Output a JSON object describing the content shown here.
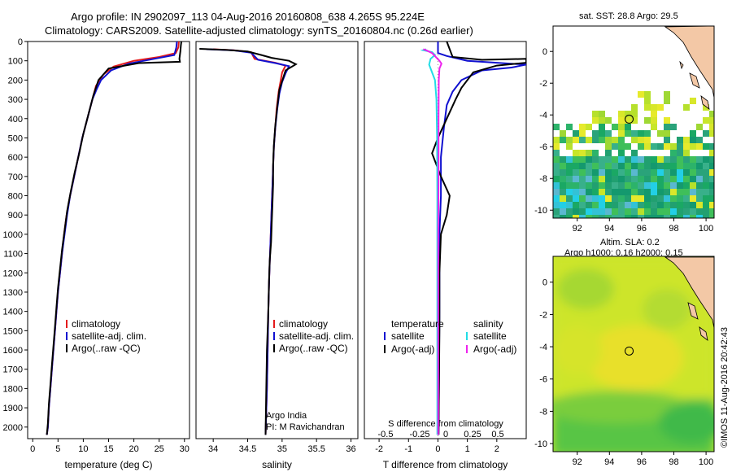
{
  "header": {
    "line1": "Argo profile: IN 2902097_113 04-Aug-2016 20160808_638 4.265S 95.224E",
    "line2": "Climatology: CARS2009. Satellite-adjusted climatology: synTS_20160804.nc (0.26d earlier)"
  },
  "colors": {
    "climatology": "#e41a1c",
    "satellite": "#1010d0",
    "argo": "#000000",
    "sat_salinity": "#22dde6",
    "argo_salinity": "#ee22ee"
  },
  "chart_data": [
    {
      "type": "line",
      "id": "temperature",
      "xlabel": "temperature (deg C)",
      "xlim": [
        -1,
        31
      ],
      "ylim": [
        2060,
        0
      ],
      "xticks": [
        0,
        5,
        10,
        15,
        20,
        25,
        30
      ],
      "yticks": [
        0,
        100,
        200,
        300,
        400,
        500,
        600,
        700,
        800,
        900,
        1000,
        1100,
        1200,
        1300,
        1400,
        1500,
        1600,
        1700,
        1800,
        1900,
        2000
      ],
      "legend": [
        "climatology",
        "satellite-adj. clim.",
        "Argo(..raw -QC)"
      ],
      "series": [
        {
          "name": "climatology",
          "color": "#e41a1c",
          "points": [
            [
              28.9,
              0
            ],
            [
              28.8,
              30
            ],
            [
              28.3,
              60
            ],
            [
              25,
              80
            ],
            [
              20,
              100
            ],
            [
              16,
              130
            ],
            [
              14,
              170
            ],
            [
              12.5,
              230
            ],
            [
              11.8,
              300
            ],
            [
              10.8,
              400
            ],
            [
              9.8,
              500
            ],
            [
              9,
              600
            ],
            [
              8.2,
              700
            ],
            [
              7.4,
              800
            ],
            [
              6.7,
              900
            ],
            [
              6.2,
              1000
            ],
            [
              5.8,
              1100
            ],
            [
              5.4,
              1200
            ],
            [
              5,
              1300
            ],
            [
              4.7,
              1400
            ],
            [
              4.4,
              1500
            ],
            [
              4.1,
              1600
            ],
            [
              3.8,
              1700
            ],
            [
              3.5,
              1800
            ],
            [
              3.2,
              1900
            ],
            [
              3,
              2000
            ],
            [
              2.8,
              2040
            ]
          ]
        },
        {
          "name": "satellite-adj. clim.",
          "color": "#1010d0",
          "points": [
            [
              28.5,
              0
            ],
            [
              28.4,
              30
            ],
            [
              28,
              70
            ],
            [
              24,
              90
            ],
            [
              19,
              115
            ],
            [
              15.5,
              150
            ],
            [
              13.5,
              200
            ],
            [
              12.6,
              250
            ],
            [
              11.8,
              300
            ],
            [
              10.8,
              400
            ],
            [
              9.8,
              500
            ],
            [
              9,
              600
            ],
            [
              8.2,
              700
            ],
            [
              7.4,
              800
            ],
            [
              6.8,
              900
            ],
            [
              6.3,
              1000
            ],
            [
              5.8,
              1100
            ],
            [
              5.4,
              1200
            ],
            [
              5,
              1300
            ],
            [
              4.7,
              1400
            ],
            [
              4.4,
              1500
            ],
            [
              4.1,
              1600
            ],
            [
              3.8,
              1700
            ],
            [
              3.5,
              1800
            ],
            [
              3.2,
              1900
            ],
            [
              3,
              2000
            ],
            [
              2.8,
              2040
            ]
          ]
        },
        {
          "name": "Argo(..raw -QC)",
          "color": "#000000",
          "points": [
            [
              29.4,
              0
            ],
            [
              29.3,
              20
            ],
            [
              29.2,
              50
            ],
            [
              29,
              90
            ],
            [
              29.1,
              105
            ],
            [
              21,
              112
            ],
            [
              15,
              140
            ],
            [
              13,
              200
            ],
            [
              12,
              280
            ],
            [
              11,
              380
            ],
            [
              10,
              480
            ],
            [
              9.2,
              580
            ],
            [
              8.3,
              680
            ],
            [
              7.5,
              780
            ],
            [
              6.8,
              880
            ],
            [
              6.3,
              980
            ],
            [
              5.8,
              1080
            ],
            [
              5.4,
              1180
            ],
            [
              5,
              1280
            ],
            [
              4.7,
              1380
            ],
            [
              4.4,
              1480
            ],
            [
              4.1,
              1580
            ],
            [
              3.8,
              1680
            ],
            [
              3.5,
              1780
            ],
            [
              3.2,
              1880
            ],
            [
              3,
              1980
            ],
            [
              2.8,
              2040
            ]
          ]
        }
      ]
    },
    {
      "type": "line",
      "id": "salinity",
      "xlabel": "salinity",
      "xlim": [
        33.75,
        36.1
      ],
      "ylim": [
        2060,
        0
      ],
      "xticks": [
        34,
        34.5,
        35,
        35.5,
        36
      ],
      "legend": [
        "climatology",
        "satellite-adj. clim.",
        "Argo(..raw -QC)"
      ],
      "annotation": [
        "Argo India",
        "PI: M Ravichandran"
      ],
      "series": [
        {
          "name": "climatology",
          "color": "#e41a1c",
          "points": [
            [
              34,
              40
            ],
            [
              34.3,
              45
            ],
            [
              34.55,
              55
            ],
            [
              34.6,
              90
            ],
            [
              34.9,
              110
            ],
            [
              35.05,
              125
            ],
            [
              35,
              160
            ],
            [
              34.98,
              200
            ],
            [
              34.95,
              260
            ],
            [
              34.92,
              350
            ],
            [
              34.9,
              450
            ],
            [
              34.88,
              550
            ],
            [
              34.87,
              650
            ],
            [
              34.86,
              750
            ],
            [
              34.85,
              850
            ],
            [
              34.84,
              950
            ],
            [
              34.83,
              1050
            ],
            [
              34.82,
              1150
            ],
            [
              34.81,
              1250
            ],
            [
              34.8,
              1400
            ],
            [
              34.79,
              1600
            ],
            [
              34.78,
              1800
            ],
            [
              34.76,
              2040
            ]
          ]
        },
        {
          "name": "satellite-adj. clim.",
          "color": "#1010d0",
          "points": [
            [
              33.9,
              40
            ],
            [
              34.3,
              46
            ],
            [
              34.55,
              58
            ],
            [
              34.65,
              95
            ],
            [
              34.9,
              112
            ],
            [
              35.1,
              128
            ],
            [
              35.05,
              165
            ],
            [
              35,
              210
            ],
            [
              34.96,
              270
            ],
            [
              34.93,
              350
            ],
            [
              34.9,
              450
            ],
            [
              34.88,
              550
            ],
            [
              34.87,
              650
            ],
            [
              34.86,
              750
            ],
            [
              34.85,
              850
            ],
            [
              34.84,
              950
            ],
            [
              34.83,
              1050
            ],
            [
              34.82,
              1150
            ],
            [
              34.81,
              1250
            ],
            [
              34.8,
              1400
            ],
            [
              34.79,
              1600
            ],
            [
              34.78,
              1800
            ],
            [
              34.76,
              2040
            ]
          ]
        },
        {
          "name": "Argo(..raw -QC)",
          "color": "#000000",
          "points": [
            [
              33.8,
              38
            ],
            [
              34.2,
              44
            ],
            [
              34.5,
              52
            ],
            [
              34.7,
              70
            ],
            [
              34.85,
              85
            ],
            [
              35.1,
              100
            ],
            [
              35.2,
              118
            ],
            [
              35.05,
              150
            ],
            [
              34.96,
              250
            ],
            [
              34.93,
              340
            ],
            [
              34.9,
              440
            ],
            [
              34.88,
              540
            ],
            [
              34.87,
              640
            ],
            [
              34.87,
              740
            ],
            [
              34.86,
              840
            ],
            [
              34.85,
              940
            ],
            [
              34.84,
              1040
            ],
            [
              34.82,
              1140
            ],
            [
              34.81,
              1240
            ],
            [
              34.8,
              1400
            ],
            [
              34.78,
              1600
            ],
            [
              34.77,
              1800
            ],
            [
              34.76,
              2040
            ]
          ]
        }
      ]
    },
    {
      "type": "line",
      "id": "difference",
      "xlabel": "T difference from climatology",
      "xlabel_top": "S difference from climatology",
      "xlim": [
        -2.5,
        3
      ],
      "ylim": [
        2060,
        0
      ],
      "xticks": [
        -2,
        -1,
        0,
        1,
        2
      ],
      "xticks_top": [
        "-0.5",
        "-0.25",
        "0",
        "0.25",
        "0.5"
      ],
      "legend_headers": [
        "temperature",
        "salinity"
      ],
      "legend": [
        "satellite",
        "Argo(-adj)",
        "satellite",
        "Argo(-adj)"
      ],
      "series": [
        {
          "name": "temperature satellite",
          "color": "#1010d0",
          "points": [
            [
              0,
              0
            ],
            [
              0,
              60
            ],
            [
              0.3,
              75
            ],
            [
              1,
              100
            ],
            [
              2,
              110
            ],
            [
              3,
              120
            ],
            [
              2.5,
              135
            ],
            [
              1.5,
              150
            ],
            [
              0.8,
              200
            ],
            [
              0.5,
              260
            ],
            [
              0.3,
              330
            ],
            [
              0.2,
              450
            ],
            [
              0.1,
              600
            ],
            [
              0.1,
              800
            ],
            [
              0.05,
              1000
            ],
            [
              0.05,
              1400
            ],
            [
              0.02,
              2040
            ]
          ]
        },
        {
          "name": "temperature Argo(-adj)",
          "color": "#000000",
          "points": [
            [
              0.3,
              0
            ],
            [
              0.4,
              40
            ],
            [
              0.5,
              80
            ],
            [
              1.5,
              95
            ],
            [
              3,
              90
            ],
            [
              3,
              110
            ],
            [
              2,
              125
            ],
            [
              1.2,
              160
            ],
            [
              0.8,
              240
            ],
            [
              0.6,
              300
            ],
            [
              0.3,
              400
            ],
            [
              0,
              500
            ],
            [
              -0.2,
              580
            ],
            [
              0.1,
              700
            ],
            [
              0.4,
              800
            ],
            [
              0.3,
              900
            ],
            [
              0.1,
              1000
            ],
            [
              0.05,
              1200
            ],
            [
              0.05,
              1500
            ],
            [
              0.02,
              2040
            ]
          ]
        },
        {
          "name": "salinity satellite",
          "color": "#22dde6",
          "points": [
            [
              -0.4,
              40
            ],
            [
              -0.5,
              45
            ],
            [
              -0.2,
              55
            ],
            [
              -0.1,
              70
            ],
            [
              -0.25,
              90
            ],
            [
              -0.3,
              120
            ],
            [
              -0.1,
              200
            ],
            [
              -0.05,
              300
            ],
            [
              -0.03,
              500
            ],
            [
              -0.02,
              800
            ],
            [
              -0.02,
              1200
            ],
            [
              -0.02,
              1600
            ],
            [
              -0.02,
              2040
            ]
          ]
        },
        {
          "name": "salinity Argo(-adj)",
          "color": "#ee22ee",
          "points": [
            [
              -0.5,
              40
            ],
            [
              -0.4,
              45
            ],
            [
              -0.2,
              60
            ],
            [
              0.05,
              100
            ],
            [
              0.12,
              115
            ],
            [
              0.05,
              140
            ],
            [
              0.03,
              200
            ],
            [
              0.02,
              400
            ],
            [
              0.02,
              700
            ],
            [
              0.01,
              1000
            ],
            [
              0.01,
              1400
            ],
            [
              0.01,
              2040
            ]
          ]
        }
      ]
    },
    {
      "type": "heatmap",
      "id": "sst-map",
      "title": "sat. SST: 28.8 Argo: 29.5",
      "xlim": [
        90.5,
        100.5
      ],
      "ylim": [
        -10.5,
        1.6
      ],
      "xticks": [
        92,
        94,
        96,
        98,
        100
      ],
      "yticks": [
        0,
        -2,
        -4,
        -6,
        -8,
        -10
      ],
      "marker": [
        95.224,
        -4.265
      ]
    },
    {
      "type": "heatmap",
      "id": "sla-map",
      "title": "Altim. SLA: 0.2",
      "subtitle": "Argo h1000: 0.16 h2000: 0.15",
      "xlim": [
        90.5,
        100.5
      ],
      "ylim": [
        -10.5,
        1.6
      ],
      "xticks": [
        92,
        94,
        96,
        98,
        100
      ],
      "yticks": [
        0,
        -2,
        -4,
        -6,
        -8,
        -10
      ],
      "marker": [
        95.224,
        -4.265
      ]
    }
  ],
  "footer": {
    "credit": "©IMOS 11-Aug-2016 20:42:43"
  }
}
